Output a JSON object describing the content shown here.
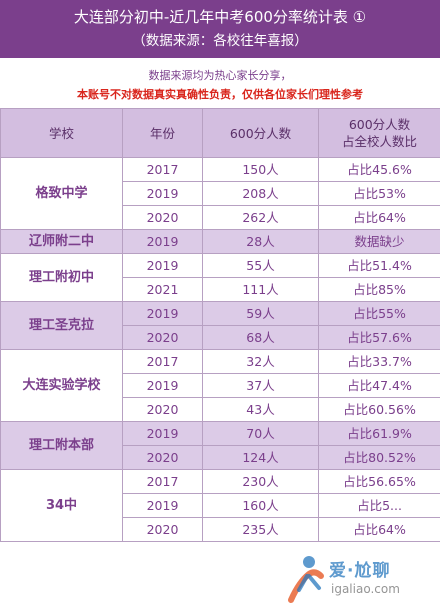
{
  "header": {
    "title": "大连部分初中-近几年中考600分率统计表 ①",
    "subtitle": "（数据来源：各校往年喜报）"
  },
  "notes": {
    "line1": "数据来源均为热心家长分享，",
    "line2": "本账号不对数据真实真确性负责，仅供各位家长们理性参考"
  },
  "table": {
    "headers": [
      "学校",
      "年份",
      "600分人数",
      "600分人数\n占全校人数比"
    ],
    "groups": [
      {
        "school": "格致中学",
        "rows": [
          {
            "year": "2017",
            "count": "150人",
            "ratio": "占比45.6%"
          },
          {
            "year": "2019",
            "count": "208人",
            "ratio": "占比53%"
          },
          {
            "year": "2020",
            "count": "262人",
            "ratio": "占比64%"
          }
        ]
      },
      {
        "school": "辽师附二中",
        "rows": [
          {
            "year": "2019",
            "count": "28人",
            "ratio": "数据缺少"
          }
        ]
      },
      {
        "school": "理工附初中",
        "rows": [
          {
            "year": "2019",
            "count": "55人",
            "ratio": "占比51.4%"
          },
          {
            "year": "2021",
            "count": "111人",
            "ratio": "占比85%"
          }
        ]
      },
      {
        "school": "理工圣克拉",
        "rows": [
          {
            "year": "2019",
            "count": "59人",
            "ratio": "占比55%"
          },
          {
            "year": "2020",
            "count": "68人",
            "ratio": "占比57.6%"
          }
        ]
      },
      {
        "school": "大连实验学校",
        "rows": [
          {
            "year": "2017",
            "count": "32人",
            "ratio": "占比33.7%"
          },
          {
            "year": "2019",
            "count": "37人",
            "ratio": "占比47.4%"
          },
          {
            "year": "2020",
            "count": "43人",
            "ratio": "占比60.56%"
          }
        ]
      },
      {
        "school": "理工附本部",
        "rows": [
          {
            "year": "2019",
            "count": "70人",
            "ratio": "占比61.9%"
          },
          {
            "year": "2020",
            "count": "124人",
            "ratio": "占比80.52%"
          }
        ]
      },
      {
        "school": "34中",
        "rows": [
          {
            "year": "2017",
            "count": "230人",
            "ratio": "占比56.65%"
          },
          {
            "year": "2019",
            "count": "160人",
            "ratio": "占比5..."
          },
          {
            "year": "2020",
            "count": "235人",
            "ratio": "占比64%"
          }
        ]
      }
    ]
  },
  "watermark": {
    "brand": "爱·尬聊",
    "url": "igaliao.com"
  },
  "colors": {
    "header_bg": "#7b3f8c",
    "row_shade": "#dccbe7",
    "warning": "#d9251c"
  }
}
